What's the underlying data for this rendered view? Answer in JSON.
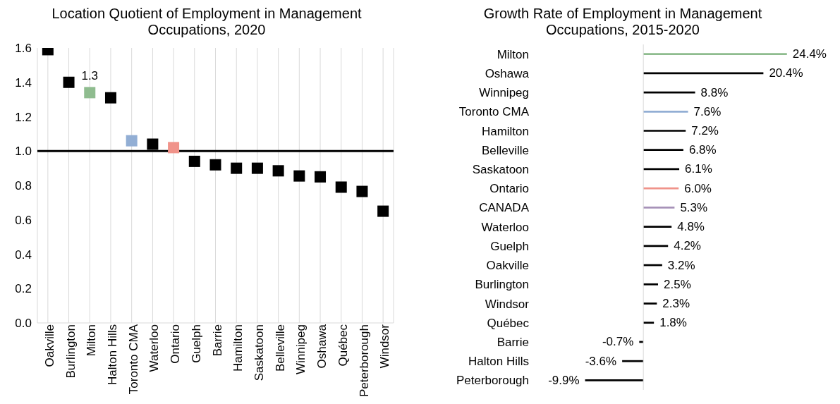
{
  "chart_data": [
    {
      "type": "scatter",
      "title": "Location Quotient of Employment in Management Occupations, 2020",
      "categories": [
        "Oakville",
        "Burlington",
        "Milton",
        "Halton Hills",
        "Toronto CMA",
        "Waterloo",
        "Ontario",
        "Guelph",
        "Barrie",
        "Hamilton",
        "Saskatoon",
        "Belleville",
        "Winnipeg",
        "Oshawa",
        "Québec",
        "Peterborough",
        "Windsor"
      ],
      "values": [
        1.59,
        1.4,
        1.34,
        1.31,
        1.06,
        1.04,
        1.02,
        0.94,
        0.92,
        0.9,
        0.9,
        0.885,
        0.855,
        0.85,
        0.79,
        0.765,
        0.65
      ],
      "colors": [
        "#000000",
        "#000000",
        "#8fbc8f",
        "#000000",
        "#92aed4",
        "#000000",
        "#f0938a",
        "#000000",
        "#000000",
        "#000000",
        "#000000",
        "#000000",
        "#000000",
        "#000000",
        "#000000",
        "#000000",
        "#000000"
      ],
      "value_labels": [
        null,
        null,
        "1.3",
        null,
        null,
        null,
        null,
        null,
        null,
        null,
        null,
        null,
        null,
        null,
        null,
        null,
        null
      ],
      "ylim": [
        0,
        1.6
      ],
      "yticks": [
        {
          "value": 0,
          "label": "0.0"
        },
        {
          "value": 0.2,
          "label": "0.2"
        },
        {
          "value": 0.4,
          "label": "0.4"
        },
        {
          "value": 0.6,
          "label": "0.6"
        },
        {
          "value": 0.8,
          "label": "0.8"
        },
        {
          "value": 1,
          "label": "1.0"
        },
        {
          "value": 1.2,
          "label": "1.2"
        },
        {
          "value": 1.4,
          "label": "1.4"
        },
        {
          "value": 1.6,
          "label": "1.6"
        }
      ],
      "grid": "x",
      "marker": "square",
      "ref_lines": [
        {
          "axis": "y",
          "value": 1,
          "color": "#000000"
        }
      ]
    },
    {
      "type": "bar",
      "orientation": "horizontal",
      "title": "Growth Rate of Employment in Management Occupations, 2015-2020",
      "categories": [
        "Milton",
        "Oshawa",
        "Winnipeg",
        "Toronto CMA",
        "Hamilton",
        "Belleville",
        "Saskatoon",
        "Ontario",
        "CANADA",
        "Waterloo",
        "Guelph",
        "Oakville",
        "Burlington",
        "Windsor",
        "Québec",
        "Barrie",
        "Halton Hills",
        "Peterborough"
      ],
      "values": [
        24.4,
        20.4,
        8.8,
        7.6,
        7.2,
        6.8,
        6.1,
        6.0,
        5.3,
        4.8,
        4.2,
        3.2,
        2.5,
        2.3,
        1.8,
        -0.7,
        -3.6,
        -9.9
      ],
      "colors": [
        "#8fbc8f",
        "#000000",
        "#000000",
        "#92aed4",
        "#000000",
        "#000000",
        "#000000",
        "#f0938a",
        "#a792b8",
        "#000000",
        "#000000",
        "#000000",
        "#000000",
        "#000000",
        "#000000",
        "#000000",
        "#000000",
        "#000000"
      ],
      "value_labels": [
        "24.4%",
        "20.4%",
        "8.8%",
        "7.6%",
        "7.2%",
        "6.8%",
        "6.1%",
        "6.0%",
        "5.3%",
        "4.8%",
        "4.2%",
        "3.2%",
        "2.5%",
        "2.3%",
        "1.8%",
        "-0.7%",
        "-3.6%",
        "-9.9%"
      ],
      "tick_labels": "y",
      "ref_lines": [
        {
          "axis": "x",
          "value": 0,
          "color": "#d9d9d9"
        }
      ]
    }
  ]
}
